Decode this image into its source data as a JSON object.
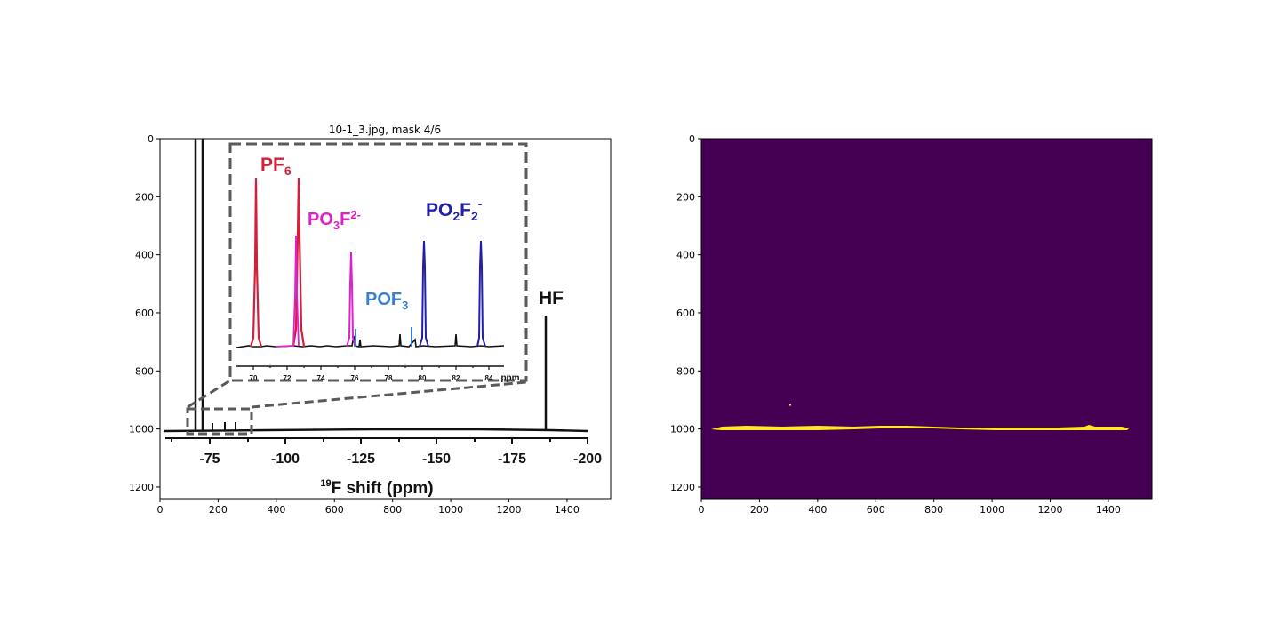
{
  "figure_title": "10-1_3.jpg, mask 4/6",
  "colors": {
    "background": "#ffffff",
    "mask_bg": "#440154",
    "mask_fg": "#fde725",
    "pf6": "#d21f3c",
    "po3f": "#e020c8",
    "pof3": "#3a7fd0",
    "po2f2": "#2020a8",
    "inset_box": "#5a5a5a"
  },
  "chart_data": [
    {
      "type": "image",
      "panel": "left",
      "title": "10-1_3.jpg, mask 4/6",
      "x_ticks": [
        0,
        200,
        400,
        600,
        800,
        1000,
        1200,
        1400
      ],
      "y_ticks": [
        0,
        200,
        400,
        600,
        800,
        1000,
        1200
      ],
      "xlim": [
        0,
        1550
      ],
      "ylim": [
        1240,
        0
      ],
      "embedded_spectrum": {
        "x_tick_labels": [
          "-75",
          "-100",
          "-125",
          "-150",
          "-175",
          "-200"
        ],
        "x_tick_values": [
          -75,
          -100,
          -125,
          -150,
          -175,
          -200
        ],
        "xlabel_sup": "19",
        "xlabel_main": "F shift (ppm)",
        "peak_labels": {
          "hf": "HF"
        },
        "inset": {
          "x_tick_labels": [
            "70",
            "72",
            "74",
            "76",
            "78",
            "80",
            "82",
            "84"
          ],
          "x_tick_values": [
            70,
            72,
            74,
            76,
            78,
            80,
            82,
            84
          ],
          "unit": "ppm",
          "labels": {
            "pf6_main": "PF",
            "pf6_sub": "6",
            "po3f_main": "PO",
            "po3f_sub": "3",
            "po3f_tail": "F",
            "po3f_sup": "2-",
            "pof3_main": "POF",
            "pof3_sub": "3",
            "po2f2_main": "PO",
            "po2f2_sub": "2",
            "po2f2_mid": "F",
            "po2f2_sub2": "2",
            "po2f2_sup": "-"
          }
        }
      }
    },
    {
      "type": "heatmap",
      "panel": "right",
      "x_ticks": [
        0,
        200,
        400,
        600,
        800,
        1000,
        1200,
        1400
      ],
      "y_ticks": [
        0,
        200,
        400,
        600,
        800,
        1000,
        1200
      ],
      "xlim": [
        0,
        1550
      ],
      "ylim": [
        1240,
        0
      ],
      "mask_band": {
        "x_start": 35,
        "x_end": 1475,
        "y_center": 995
      }
    }
  ]
}
